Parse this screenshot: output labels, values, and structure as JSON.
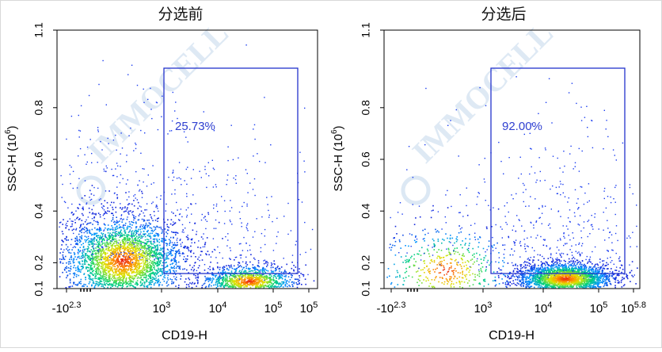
{
  "chart_data": [
    {
      "type": "scatter",
      "title": "分选前",
      "xlabel": "CD19-H",
      "ylabel": "SSC-H",
      "ylabel_unit": "(10",
      "ylabel_exp": "6",
      "ylabel_close": ")",
      "y_ticks": [
        "0.1",
        "0.2",
        "0.4",
        "0.6",
        "0.8",
        "1.1"
      ],
      "x_ticks": [
        {
          "base": "-10",
          "exp": "2.3"
        },
        {
          "base": "10",
          "exp": "3"
        },
        {
          "base": "10",
          "exp": "4"
        },
        {
          "base": "10",
          "exp": "5"
        },
        {
          "base": "10",
          "exp": "5"
        }
      ],
      "gate_label": "25.73%",
      "gate_percent": 25.73,
      "populations": [
        {
          "name": "",
          "x_log": 2.95,
          "y": 0.21,
          "count": 3200
        },
        {
          "name": "",
          "x_log": 4.6,
          "y": 0.13,
          "count": 1300
        }
      ],
      "watermark": "IMMOCELL"
    },
    {
      "type": "scatter",
      "title": "分选后",
      "xlabel": "CD19-H",
      "ylabel": "SSC-H",
      "ylabel_unit": "(10",
      "ylabel_exp": "6",
      "ylabel_close": ")",
      "y_ticks": [
        "0.1",
        "0.2",
        "0.4",
        "0.6",
        "0.8",
        "1.1"
      ],
      "x_ticks": [
        {
          "base": "-10",
          "exp": "2.3"
        },
        {
          "base": "10",
          "exp": "3"
        },
        {
          "base": "10",
          "exp": "4"
        },
        {
          "base": "10",
          "exp": "5"
        },
        {
          "base": "10",
          "exp": "5.8"
        }
      ],
      "gate_label": "92.00%",
      "gate_percent": 92.0,
      "populations": [
        {
          "name": "",
          "x_log": 2.9,
          "y": 0.17,
          "count": 600
        },
        {
          "name": "",
          "x_log": 4.5,
          "y": 0.14,
          "count": 2600
        }
      ],
      "watermark": "IMMOCELL"
    }
  ]
}
